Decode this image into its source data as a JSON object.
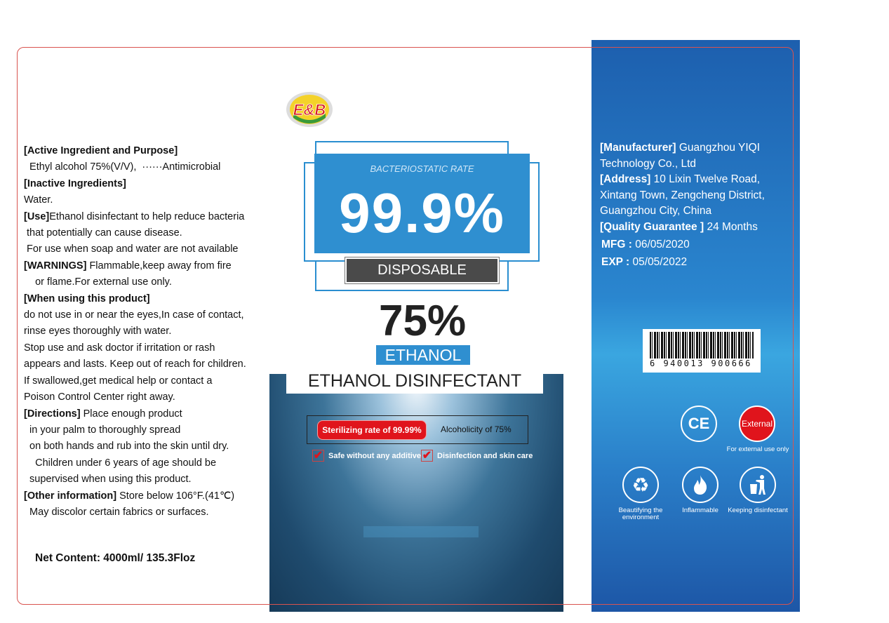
{
  "brand": {
    "logo_text": "E&B"
  },
  "left_panel": {
    "lines": [
      {
        "bold": "[Active Ingredient and Purpose]",
        "text": ""
      },
      {
        "bold": "",
        "text": "  Ethyl alcohol 75%(V/V),  ······Antimicrobial"
      },
      {
        "bold": "[Inactive Ingredients]",
        "text": ""
      },
      {
        "bold": "",
        "text": "Water."
      },
      {
        "bold": "[Use]",
        "text": "Ethanol disinfectant to help reduce bacteria"
      },
      {
        "bold": "",
        "text": " that potentially can cause disease."
      },
      {
        "bold": "",
        "text": " For use when soap and water are not available"
      },
      {
        "bold": "[WARNINGS]",
        "text": " Flammable,keep away from fire"
      },
      {
        "bold": "",
        "text": "    or flame.For external use only."
      },
      {
        "bold": "[When using this product]",
        "text": ""
      },
      {
        "bold": "",
        "text": "do not use in or near the eyes,In case of contact,"
      },
      {
        "bold": "",
        "text": "rinse eyes thoroughly with water."
      },
      {
        "bold": "",
        "text": "Stop use and ask doctor if irritation or rash"
      },
      {
        "bold": "",
        "text": "appears and lasts. Keep out of reach for children."
      },
      {
        "bold": "",
        "text": "If swallowed,get medical help or contact a"
      },
      {
        "bold": "",
        "text": "Poison Control Center right away."
      },
      {
        "bold": "[Directions]",
        "text": " Place enough product"
      },
      {
        "bold": "",
        "text": "  in your palm to thoroughly spread"
      },
      {
        "bold": "",
        "text": "  on both hands and rub into the skin until dry."
      },
      {
        "bold": "",
        "text": "    Children under 6 years of age should be"
      },
      {
        "bold": "",
        "text": "  supervised when using this product."
      },
      {
        "bold": "[Other information]",
        "text": " Store below 106°F.(41℃)"
      },
      {
        "bold": "",
        "text": "  May discolor certain fabrics or surfaces."
      }
    ],
    "net_content": "Net Content: 4000ml/ 135.3Floz"
  },
  "center": {
    "badge_label": "BACTERIOSTATIC RATE",
    "badge_value": "99.9%",
    "disposable": "DISPOSABLE",
    "concentration": "75%",
    "ethanol": "ETHANOL",
    "product_name": "ETHANOL DISINFECTANT",
    "sterilizing": "Sterilizing rate of 99.99%",
    "alcoholicity": "Alcoholicity of 75%",
    "checks": [
      "Safe without any additive",
      "Disinfection and skin care"
    ]
  },
  "right_panel": {
    "manufacturer_label": "[Manufacturer]",
    "manufacturer": " Guangzhou YIQI Technology Co., Ltd",
    "address_label": "[Address]",
    "address": " 10 Lixin Twelve Road, Xintang Town, Zengcheng District, Guangzhou City, China",
    "quality_label": "[Quality Guarantee ]",
    "quality": "  24 Months",
    "mfg_label": "MFG : ",
    "mfg": "06/05/2020",
    "exp_label": "EXP  : ",
    "exp": "05/05/2022",
    "barcode": "6 940013 900666",
    "icons": {
      "ce": "CE",
      "external": "External",
      "external_caption": "For external use only",
      "recycle_caption": "Beautifying the environment",
      "flame_caption": "Inflammable",
      "trash_caption": "Keeping disinfectant"
    },
    "colors": {
      "panel": "#2a86cf",
      "accent_red": "#e0141c",
      "badge_blue": "#2f8fd0"
    }
  }
}
